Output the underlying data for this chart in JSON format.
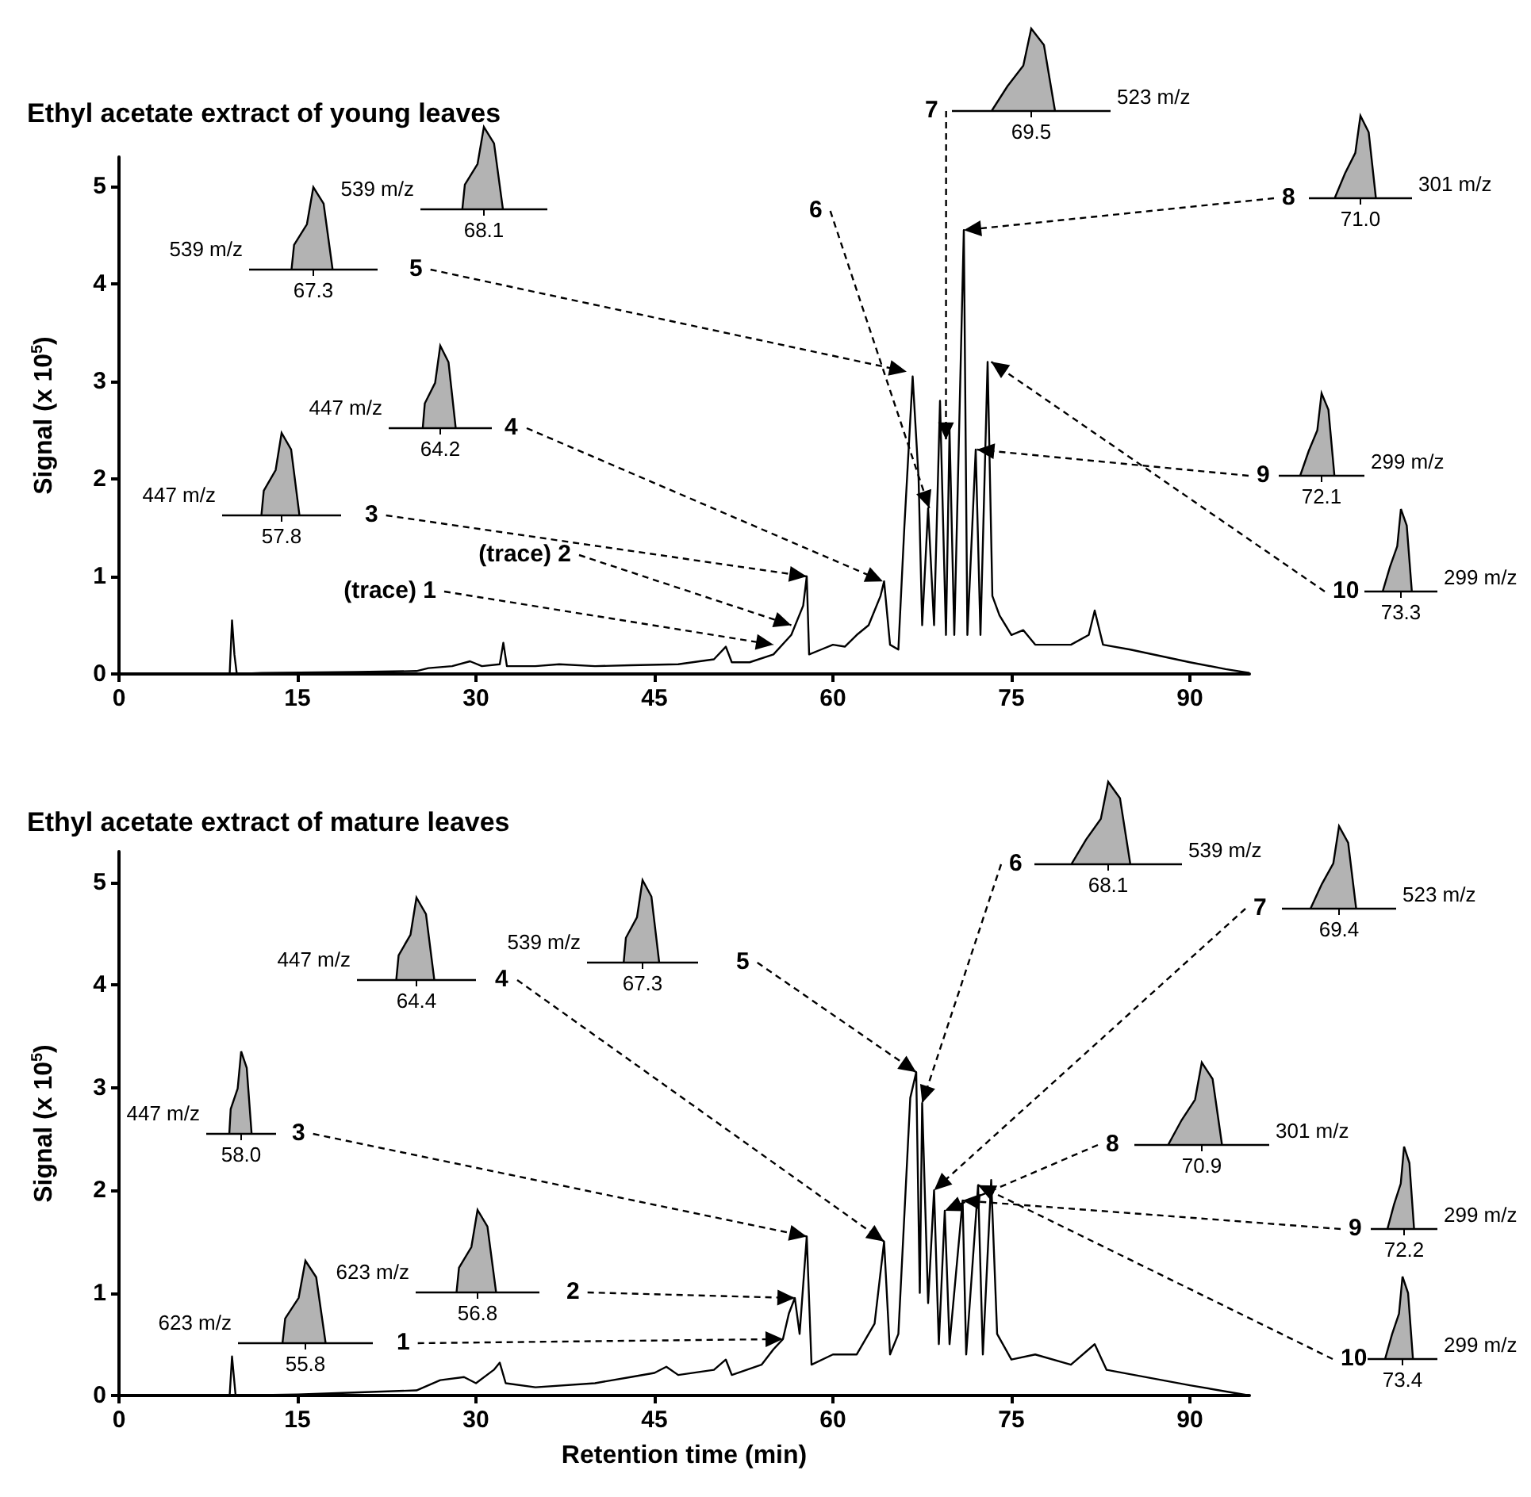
{
  "chart_data": [
    {
      "type": "line",
      "title": "Ethyl acetate extract of young leaves",
      "ylabel": "Signal (x 10$^{5}$)",
      "xlim": [
        0,
        95
      ],
      "xticks": [
        0,
        15,
        30,
        45,
        60,
        75,
        90
      ],
      "ylim": [
        0,
        5.3
      ],
      "yticks": [
        0,
        1,
        2,
        3,
        4,
        5
      ],
      "grid": false,
      "marker": "none",
      "line_style": "solid",
      "series": [
        {
          "color": "#000000",
          "x": [
            9.3,
            9.5,
            9.7,
            9.9,
            12,
            20,
            25,
            26,
            28,
            29.5,
            30.5,
            32,
            32.3,
            32.6,
            35,
            37,
            40,
            43,
            47,
            50,
            51,
            51.5,
            53,
            55,
            56.5,
            57.5,
            57.8,
            58,
            59,
            60,
            61,
            62,
            63,
            64,
            64.3,
            64.8,
            65.5,
            66,
            66.7,
            67.2,
            67.5,
            68,
            68.5,
            69,
            69.5,
            69.8,
            70.2,
            71,
            71.3,
            72,
            72.4,
            73,
            73.4,
            74,
            75,
            76,
            77,
            80,
            81.5,
            82,
            82.7,
            85,
            90,
            93,
            95
          ],
          "values": [
            0,
            0.55,
            0.2,
            0,
            0.01,
            0.02,
            0.03,
            0.06,
            0.08,
            0.13,
            0.08,
            0.1,
            0.32,
            0.08,
            0.08,
            0.1,
            0.08,
            0.09,
            0.1,
            0.15,
            0.28,
            0.12,
            0.12,
            0.2,
            0.4,
            0.7,
            1.0,
            0.2,
            0.25,
            0.3,
            0.28,
            0.4,
            0.5,
            0.8,
            0.95,
            0.3,
            0.25,
            1.5,
            3.05,
            2.0,
            0.5,
            1.7,
            0.5,
            2.8,
            0.4,
            2.5,
            0.4,
            4.55,
            0.4,
            2.3,
            0.4,
            3.2,
            0.8,
            0.6,
            0.4,
            0.45,
            0.3,
            0.3,
            0.4,
            0.65,
            0.3,
            0.25,
            0.12,
            0.05,
            0.01
          ]
        }
      ],
      "annotations": [
        {
          "text": "(trace) 1",
          "x": 55,
          "y": 0.3
        },
        {
          "text": "(trace) 2",
          "x": 56.5,
          "y": 0.5
        },
        {
          "text": "3",
          "x": 57.8,
          "y": 1.0
        },
        "447 m/z",
        "57.8",
        {
          "text": "4",
          "x": 64.2,
          "y": 0.95
        },
        "447 m/z",
        "64.2",
        {
          "text": "5",
          "x": 66.2,
          "y": 3.1
        },
        "539 m/z",
        "67.3",
        {
          "text": "6",
          "x": 68.1,
          "y": 1.7
        },
        "539 m/z",
        "68.1",
        {
          "text": "7",
          "x": 69.5,
          "y": 2.4
        },
        "523 m/z",
        "69.5",
        {
          "text": "8",
          "x": 71.0,
          "y": 4.55
        },
        "301 m/z",
        "71.0",
        {
          "text": "9",
          "x": 72.1,
          "y": 2.3
        },
        "299 m/z",
        "72.1",
        {
          "text": "10",
          "x": 73.3,
          "y": 3.2
        },
        "299 m/z",
        "73.3"
      ]
    },
    {
      "type": "line",
      "title": "Ethyl acetate extract of mature leaves",
      "xlabel": "Retention time (min)",
      "ylabel": "Signal (x 10$^{5}$)",
      "xlim": [
        0,
        95
      ],
      "xticks": [
        0,
        15,
        30,
        45,
        60,
        75,
        90
      ],
      "ylim": [
        0,
        5.3
      ],
      "yticks": [
        0,
        1,
        2,
        3,
        4,
        5
      ],
      "grid": false,
      "marker": "none",
      "line_style": "solid",
      "series": [
        {
          "color": "#000000",
          "x": [
            9.3,
            9.5,
            9.8,
            15,
            25,
            27,
            29,
            30,
            31.5,
            32,
            32.5,
            35,
            40,
            43,
            45,
            46,
            47,
            50,
            51,
            51.5,
            54,
            55,
            55.8,
            56.3,
            56.8,
            57.2,
            57.8,
            58.2,
            60,
            62,
            63.5,
            64.3,
            64.8,
            65.5,
            66.5,
            67,
            67.3,
            67.5,
            68,
            68.5,
            68.9,
            69.4,
            69.8,
            70.9,
            71.2,
            72.2,
            72.6,
            73.3,
            73.8,
            75,
            77,
            80,
            82,
            83,
            90,
            95
          ],
          "values": [
            0,
            0.38,
            0,
            0.01,
            0.05,
            0.15,
            0.18,
            0.12,
            0.25,
            0.32,
            0.12,
            0.08,
            0.12,
            0.18,
            0.22,
            0.28,
            0.2,
            0.25,
            0.35,
            0.2,
            0.3,
            0.45,
            0.55,
            0.8,
            0.95,
            0.6,
            1.55,
            0.3,
            0.4,
            0.4,
            0.7,
            1.5,
            0.4,
            0.6,
            2.9,
            3.15,
            1.0,
            2.85,
            0.9,
            2.0,
            0.5,
            1.8,
            0.5,
            1.9,
            0.4,
            2.05,
            0.4,
            2.1,
            0.6,
            0.35,
            0.4,
            0.3,
            0.5,
            0.25,
            0.1,
            0.0
          ]
        }
      ],
      "annotations": [
        {
          "text": "1",
          "x": 55.8,
          "y": 0.55
        },
        "623 m/z",
        "55.8",
        {
          "text": "2",
          "x": 56.8,
          "y": 0.95
        },
        "623 m/z",
        "56.8",
        {
          "text": "3",
          "x": 57.8,
          "y": 1.55
        },
        "447 m/z",
        "58.0",
        {
          "text": "4",
          "x": 64.3,
          "y": 1.5
        },
        "447 m/z",
        "64.4",
        {
          "text": "5",
          "x": 67.0,
          "y": 3.15
        },
        "539 m/z",
        "67.3",
        {
          "text": "6",
          "x": 67.5,
          "y": 2.85
        },
        "539 m/z",
        "68.1",
        {
          "text": "7",
          "x": 68.5,
          "y": 2.0
        },
        "523 m/z",
        "69.4",
        {
          "text": "8",
          "x": 69.4,
          "y": 1.8
        },
        "301 m/z",
        "70.9",
        {
          "text": "9",
          "x": 70.9,
          "y": 1.9
        },
        "299 m/z",
        "72.2",
        {
          "text": "10",
          "x": 72.2,
          "y": 2.05
        },
        "299 m/z",
        "73.4"
      ]
    }
  ]
}
